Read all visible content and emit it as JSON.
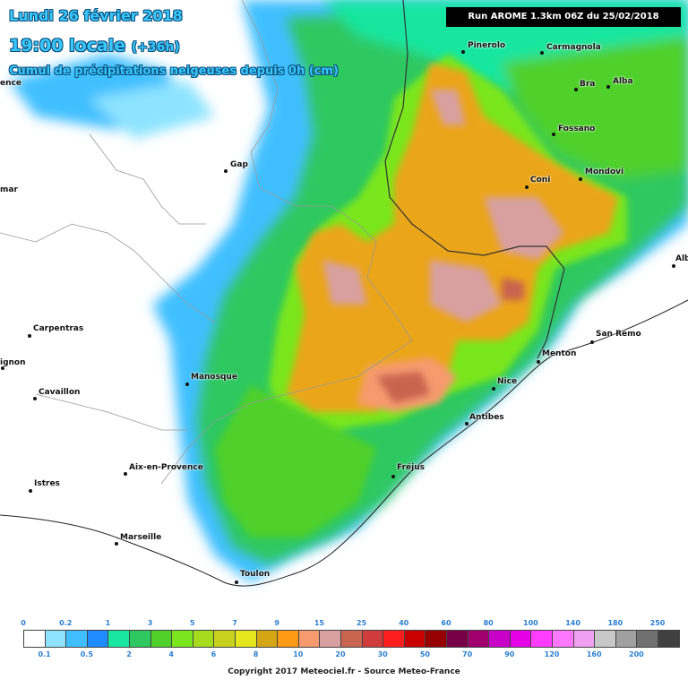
{
  "header": {
    "title_line1": "Lundi 26 février 2018",
    "title_time": "19:00 locale",
    "title_offset": "(+36h)",
    "subtitle": "Cumul de précipitations neigeuses depuis 0h (cm)",
    "run_info": "Run AROME 1.3km 06Z du 25/02/2018"
  },
  "cities": [
    {
      "name": "Pinerolo"
    },
    {
      "name": "Carmagnola"
    },
    {
      "name": "Bra"
    },
    {
      "name": "Alba"
    },
    {
      "name": "Fossano"
    },
    {
      "name": "Gap"
    },
    {
      "name": "Coni"
    },
    {
      "name": "Mondovi"
    },
    {
      "name": "Carpentras"
    },
    {
      "name": "Manosque"
    },
    {
      "name": "Cavaillon"
    },
    {
      "name": "Menton"
    },
    {
      "name": "San Remo"
    },
    {
      "name": "Nice"
    },
    {
      "name": "Antibes"
    },
    {
      "name": "Aix-en-Provence"
    },
    {
      "name": "Fréjus"
    },
    {
      "name": "Istres"
    },
    {
      "name": "Marseille"
    },
    {
      "name": "Toulon"
    },
    {
      "name": "Alb"
    },
    {
      "name": "ignon"
    },
    {
      "name": "mar"
    },
    {
      "name": "ence"
    }
  ],
  "legend": {
    "top_labels": [
      "0",
      "0.2",
      "1",
      "3",
      "5",
      "7",
      "9",
      "15",
      "25",
      "40",
      "60",
      "80",
      "100",
      "140",
      "180",
      "250"
    ],
    "bottom_labels": [
      "0.1",
      "0.5",
      "2",
      "4",
      "6",
      "8",
      "10",
      "20",
      "30",
      "50",
      "70",
      "90",
      "120",
      "160",
      "200"
    ],
    "colors": [
      "#ffffff",
      "#8ee4ff",
      "#3fbfff",
      "#1e8cff",
      "#19e6a0",
      "#2ec860",
      "#4fd02a",
      "#7ae61e",
      "#a6dc1e",
      "#c8d21e",
      "#e6e61e",
      "#d4a614",
      "#ff9a14",
      "#f79a6e",
      "#d8a0a0",
      "#c86450",
      "#d03c3c",
      "#ff1e1e",
      "#c80000",
      "#960000",
      "#780046",
      "#a0006e",
      "#c800c8",
      "#e600e6",
      "#ff3cff",
      "#ff78ff",
      "#f0a0f0",
      "#c8c8c8",
      "#a0a0a0",
      "#707070",
      "#404040"
    ]
  },
  "footer": {
    "copyright": "Copyright 2017 Meteociel.fr - Source Meteo-France"
  }
}
